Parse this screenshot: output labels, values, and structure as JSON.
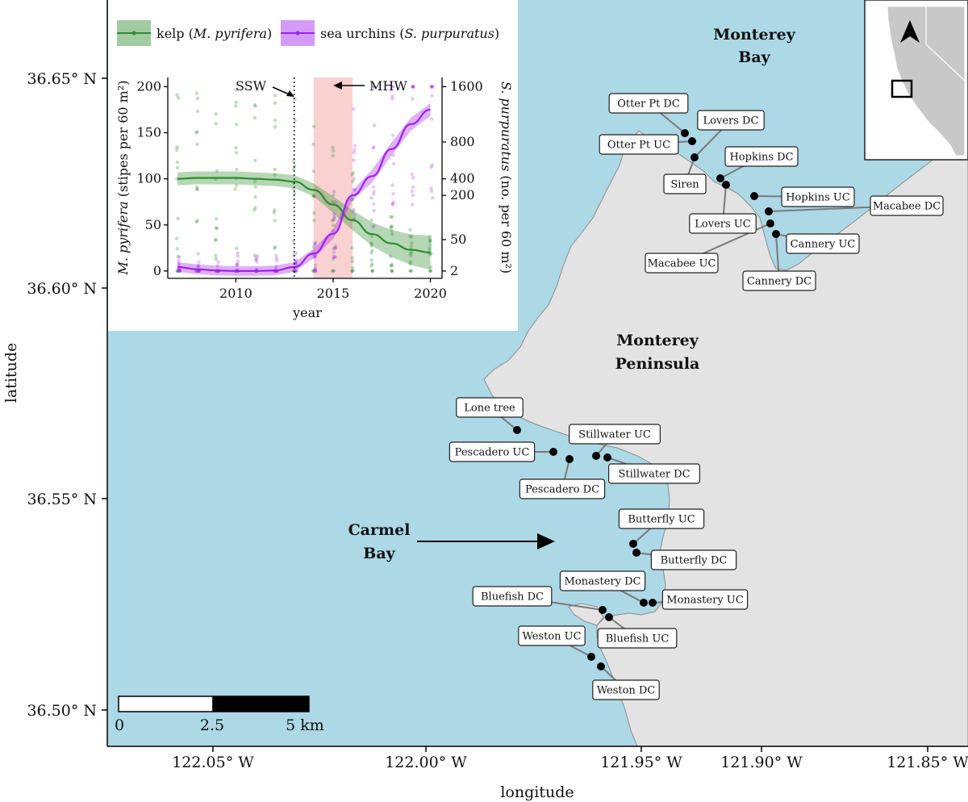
{
  "map": {
    "x_axis_title": "longitude",
    "y_axis_title": "latitude",
    "x_ticks": [
      "122.05° W",
      "122.00° W",
      "121.95° W",
      "121.90° W",
      "121.85° W"
    ],
    "y_ticks": [
      "36.65° N",
      "36.60° N",
      "36.55° N",
      "36.50° N"
    ],
    "places": {
      "monterey_bay": [
        "Monterey",
        "Bay"
      ],
      "monterey_peninsula": [
        "Monterey",
        "Peninsula"
      ],
      "carmel_bay": [
        "Carmel",
        "Bay"
      ]
    },
    "scale_bar": {
      "labels": [
        "0",
        "2.5",
        "5 km"
      ]
    },
    "colors": {
      "ocean": "#add8e6",
      "land": "#e3e3e3",
      "kelp": "#2e8b2e",
      "urchin": "#a020f0",
      "mhw": "#f7c6c6"
    },
    "sites": [
      {
        "name": "Otter Pt DC"
      },
      {
        "name": "Otter Pt UC"
      },
      {
        "name": "Lovers DC"
      },
      {
        "name": "Siren"
      },
      {
        "name": "Hopkins DC"
      },
      {
        "name": "Hopkins UC"
      },
      {
        "name": "Lovers UC"
      },
      {
        "name": "Macabee DC"
      },
      {
        "name": "Cannery UC"
      },
      {
        "name": "Macabee UC"
      },
      {
        "name": "Cannery DC"
      },
      {
        "name": "Lone tree"
      },
      {
        "name": "Pescadero UC"
      },
      {
        "name": "Stillwater UC"
      },
      {
        "name": "Pescadero DC"
      },
      {
        "name": "Stillwater DC"
      },
      {
        "name": "Butterfly UC"
      },
      {
        "name": "Butterfly DC"
      },
      {
        "name": "Monastery DC"
      },
      {
        "name": "Bluefish DC"
      },
      {
        "name": "Monastery UC"
      },
      {
        "name": "Weston UC"
      },
      {
        "name": "Bluefish UC"
      },
      {
        "name": "Weston DC"
      }
    ]
  },
  "inset_chart": {
    "legend": {
      "kelp_prefix": "kelp (",
      "kelp_species": "M. pyrifera",
      "kelp_suffix": ")",
      "urchin_prefix": "sea urchins (",
      "urchin_species": "S. purpuratus",
      "urchin_suffix": ")"
    },
    "annotations": {
      "ssw": "SSW",
      "mhw": "MHW"
    }
  },
  "chart_data": {
    "type": "line",
    "title": "",
    "xlabel": "year",
    "ylabel_left": "M. pyrifera (stipes per 60 m²)",
    "ylabel_right": "S. purpuratus (no. per 60 m²)",
    "x_ticks": [
      2010,
      2015,
      2020
    ],
    "xlim": [
      2006.5,
      2020.6
    ],
    "y_left_ticks": [
      0,
      50,
      100,
      150,
      200
    ],
    "ylim_left": [
      -8,
      210
    ],
    "y_right_ticks": [
      2,
      50,
      200,
      400,
      800,
      1600
    ],
    "right_axis_scale": "log-like",
    "ssw_year": 2013,
    "mhw_range": [
      2014,
      2016
    ],
    "series": [
      {
        "name": "kelp (M. pyrifera)",
        "axis": "left",
        "x": [
          2007,
          2008,
          2009,
          2010,
          2011,
          2012,
          2013,
          2014,
          2015,
          2016,
          2017,
          2018,
          2019,
          2020
        ],
        "values": [
          100,
          101,
          101,
          101,
          100,
          99,
          97,
          88,
          72,
          55,
          40,
          30,
          23,
          20
        ]
      },
      {
        "name": "sea urchins (S. purpuratus)",
        "axis": "right",
        "x": [
          2007,
          2008,
          2009,
          2010,
          2011,
          2012,
          2013,
          2014,
          2015,
          2016,
          2017,
          2018,
          2019,
          2020
        ],
        "values": [
          3,
          2.4,
          2.1,
          2,
          2,
          2.1,
          3,
          12,
          60,
          200,
          420,
          700,
          1000,
          1200
        ]
      }
    ]
  }
}
